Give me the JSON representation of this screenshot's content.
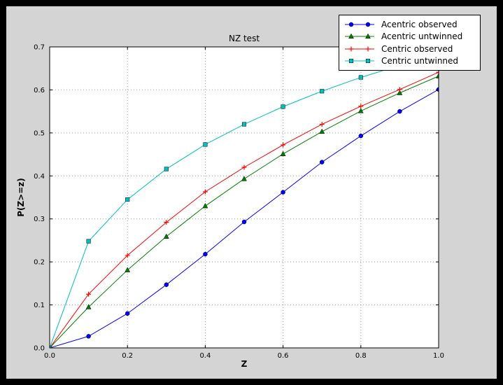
{
  "chart_data": {
    "type": "line",
    "title": "NZ test",
    "xlabel": "Z",
    "ylabel": "P(Z>=z)",
    "xlim": [
      0.0,
      1.0
    ],
    "ylim": [
      0.0,
      0.7
    ],
    "xticks": [
      "0.0",
      "0.2",
      "0.4",
      "0.6",
      "0.8",
      "1.0"
    ],
    "yticks": [
      "0.0",
      "0.1",
      "0.2",
      "0.3",
      "0.4",
      "0.5",
      "0.6",
      "0.7"
    ],
    "grid": true,
    "grid_style": "dotted",
    "legend_position": "upper right",
    "x": [
      0.0,
      0.1,
      0.2,
      0.3,
      0.4,
      0.5,
      0.6,
      0.7,
      0.8,
      0.9,
      1.0
    ],
    "series": [
      {
        "name": "Acentric observed",
        "color": "#0000ff",
        "marker": "circle",
        "values": [
          0.0,
          0.027,
          0.08,
          0.147,
          0.218,
          0.293,
          0.362,
          0.432,
          0.493,
          0.55,
          0.601
        ]
      },
      {
        "name": "Acentric untwinned",
        "color": "#008000",
        "marker": "triangle",
        "values": [
          0.0,
          0.095,
          0.181,
          0.259,
          0.33,
          0.393,
          0.451,
          0.503,
          0.551,
          0.593,
          0.632
        ]
      },
      {
        "name": "Centric observed",
        "color": "#ff0000",
        "marker": "plus",
        "values": [
          0.0,
          0.125,
          0.215,
          0.292,
          0.363,
          0.42,
          0.472,
          0.52,
          0.562,
          0.601,
          0.641
        ]
      },
      {
        "name": "Centric untwinned",
        "color": "#00bfbf",
        "marker": "square",
        "values": [
          0.0,
          0.248,
          0.345,
          0.416,
          0.473,
          0.52,
          0.561,
          0.597,
          0.629,
          0.657,
          0.683
        ]
      }
    ]
  },
  "colors": {
    "frame": "#000000",
    "figure_bg": "#d4d4d4",
    "plot_bg": "#ffffff",
    "grid": "#999999",
    "axis": "#000000"
  }
}
